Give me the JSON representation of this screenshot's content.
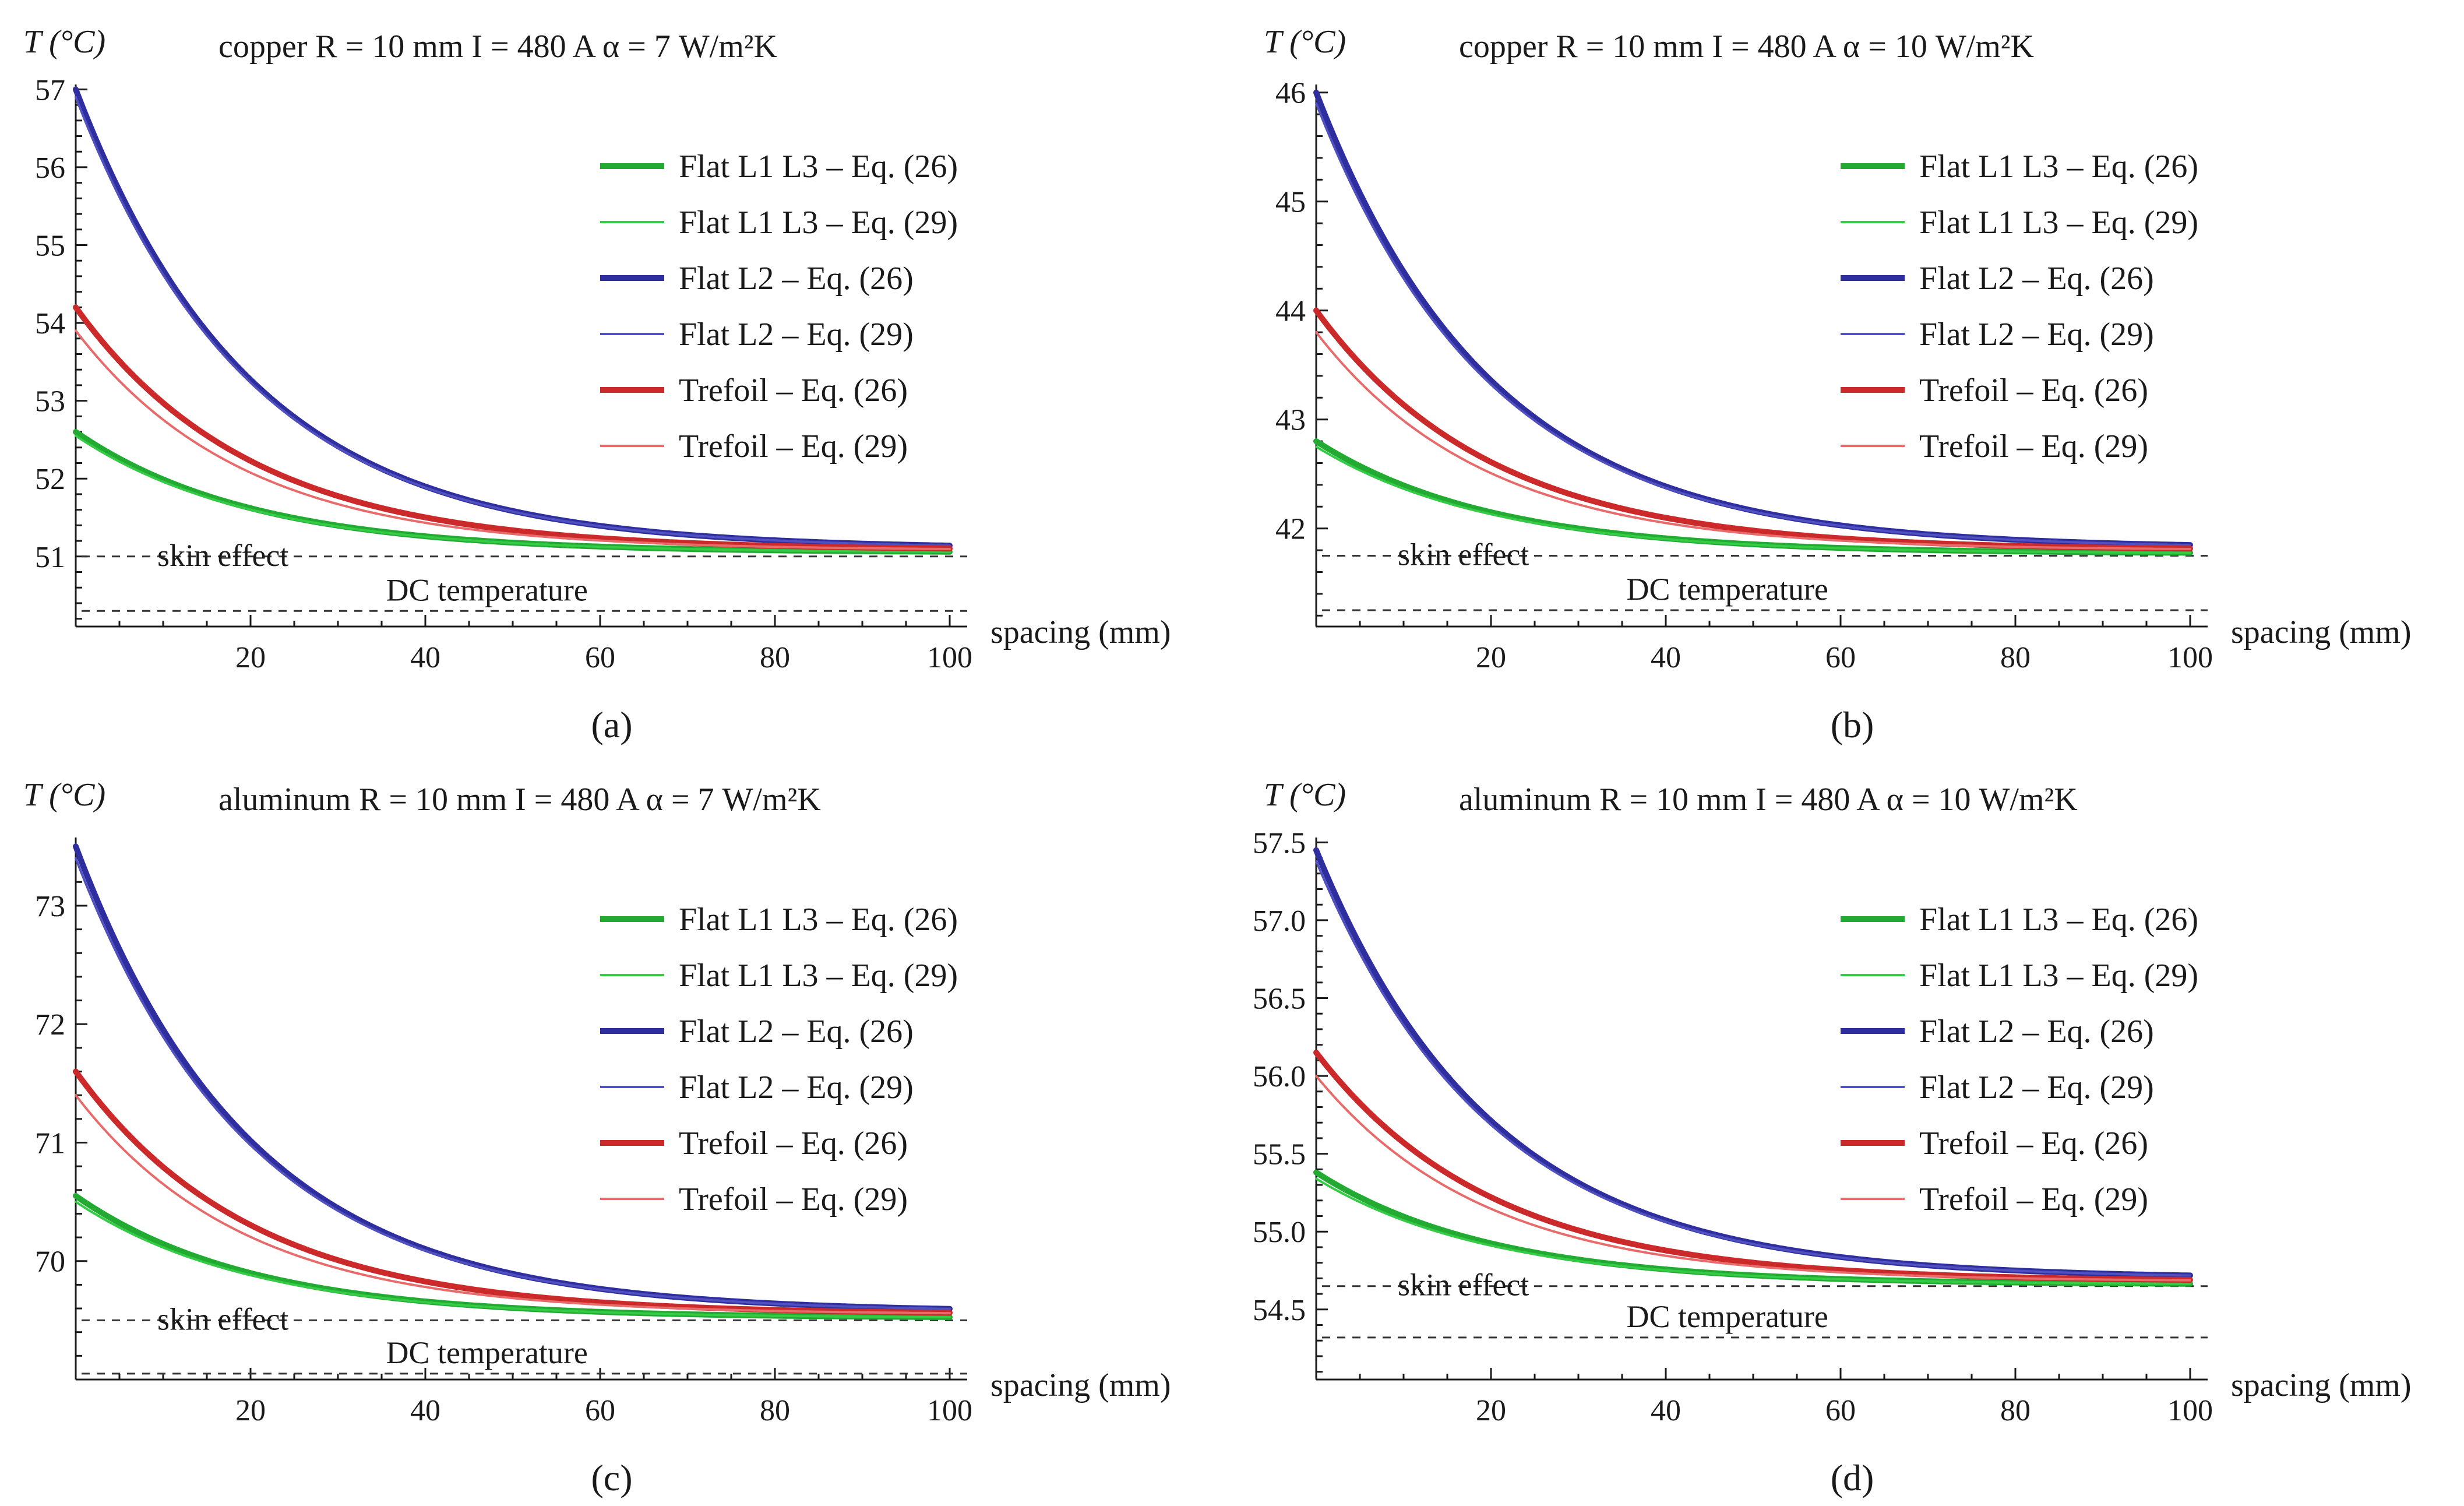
{
  "chart_data": [
    {
      "type": "line",
      "panel_label": "(a)",
      "title": "copper   R = 10 mm   I = 480 A   α = 7 W/m²K",
      "ylabel": "T (°C)",
      "xlabel": "spacing (mm)",
      "xlim": [
        0,
        102
      ],
      "ylim": [
        50.1,
        57.1
      ],
      "xticks": [
        20,
        40,
        60,
        80,
        100
      ],
      "yticks": [
        51,
        52,
        53,
        54,
        55,
        56,
        57
      ],
      "skin_effect": {
        "label": "skin effect",
        "value": 51.0
      },
      "dc_temperature": {
        "label": "DC temperature",
        "value": 50.3
      },
      "legend": "top-right",
      "series": [
        {
          "name": "Flat L1 L3 – Eq. (26)",
          "color": "#22aa33",
          "weight": "thick",
          "start": 52.6,
          "end": 51.05,
          "decay": 0.05
        },
        {
          "name": "Flat L1 L3 – Eq. (29)",
          "color": "#33cc44",
          "weight": "thin",
          "start": 52.55,
          "end": 51.05,
          "decay": 0.05
        },
        {
          "name": "Flat L2 – Eq. (26)",
          "color": "#2e2e9e",
          "weight": "thick",
          "start": 57.0,
          "end": 51.1,
          "decay": 0.05
        },
        {
          "name": "Flat L2 – Eq. (29)",
          "color": "#5050c0",
          "weight": "thin",
          "start": 56.9,
          "end": 51.1,
          "decay": 0.05
        },
        {
          "name": "Trefoil – Eq. (26)",
          "color": "#cc2a2a",
          "weight": "thick",
          "start": 54.2,
          "end": 51.08,
          "decay": 0.05
        },
        {
          "name": "Trefoil – Eq. (29)",
          "color": "#e86a6a",
          "weight": "thin",
          "start": 53.9,
          "end": 51.08,
          "decay": 0.052
        }
      ]
    },
    {
      "type": "line",
      "panel_label": "(b)",
      "title": "copper   R = 10 mm   I = 480 A   α = 10 W/m²K",
      "ylabel": "T (°C)",
      "xlabel": "spacing (mm)",
      "xlim": [
        0,
        102
      ],
      "ylim": [
        41.1,
        46.1
      ],
      "xticks": [
        20,
        40,
        60,
        80,
        100
      ],
      "yticks": [
        42,
        43,
        44,
        45,
        46
      ],
      "skin_effect": {
        "label": "skin effect",
        "value": 41.75
      },
      "dc_temperature": {
        "label": "DC temperature",
        "value": 41.25
      },
      "legend": "top-right",
      "series": [
        {
          "name": "Flat L1 L3 – Eq. (26)",
          "color": "#22aa33",
          "weight": "thick",
          "start": 42.8,
          "end": 41.77,
          "decay": 0.05
        },
        {
          "name": "Flat L1 L3 – Eq. (29)",
          "color": "#33cc44",
          "weight": "thin",
          "start": 42.75,
          "end": 41.77,
          "decay": 0.05
        },
        {
          "name": "Flat L2 – Eq. (26)",
          "color": "#2e2e9e",
          "weight": "thick",
          "start": 46.0,
          "end": 41.82,
          "decay": 0.05
        },
        {
          "name": "Flat L2 – Eq. (29)",
          "color": "#5050c0",
          "weight": "thin",
          "start": 45.9,
          "end": 41.82,
          "decay": 0.05
        },
        {
          "name": "Trefoil – Eq. (26)",
          "color": "#cc2a2a",
          "weight": "thick",
          "start": 44.0,
          "end": 41.8,
          "decay": 0.05
        },
        {
          "name": "Trefoil – Eq. (29)",
          "color": "#e86a6a",
          "weight": "thin",
          "start": 43.8,
          "end": 41.8,
          "decay": 0.052
        }
      ]
    },
    {
      "type": "line",
      "panel_label": "(c)",
      "title": "aluminum   R = 10 mm   I = 480 A   α = 7 W/m²K",
      "ylabel": "T (°C)",
      "xlabel": "spacing (mm)",
      "xlim": [
        0,
        102
      ],
      "ylim": [
        69.0,
        73.6
      ],
      "xticks": [
        20,
        40,
        60,
        80,
        100
      ],
      "yticks": [
        70,
        71,
        72,
        73
      ],
      "skin_effect": {
        "label": "skin effect",
        "value": 69.5
      },
      "dc_temperature": {
        "label": "DC temperature",
        "value": 69.05
      },
      "legend": "top-right",
      "series": [
        {
          "name": "Flat L1 L3 – Eq. (26)",
          "color": "#22aa33",
          "weight": "thick",
          "start": 70.55,
          "end": 69.52,
          "decay": 0.05
        },
        {
          "name": "Flat L1 L3 – Eq. (29)",
          "color": "#33cc44",
          "weight": "thin",
          "start": 70.5,
          "end": 69.52,
          "decay": 0.05
        },
        {
          "name": "Flat L2 – Eq. (26)",
          "color": "#2e2e9e",
          "weight": "thick",
          "start": 73.5,
          "end": 69.57,
          "decay": 0.05
        },
        {
          "name": "Flat L2 – Eq. (29)",
          "color": "#5050c0",
          "weight": "thin",
          "start": 73.4,
          "end": 69.57,
          "decay": 0.05
        },
        {
          "name": "Trefoil – Eq. (26)",
          "color": "#cc2a2a",
          "weight": "thick",
          "start": 71.6,
          "end": 69.55,
          "decay": 0.05
        },
        {
          "name": "Trefoil – Eq. (29)",
          "color": "#e86a6a",
          "weight": "thin",
          "start": 71.4,
          "end": 69.55,
          "decay": 0.052
        }
      ]
    },
    {
      "type": "line",
      "panel_label": "(d)",
      "title": "aluminum   R = 10 mm   I = 480 A   α = 10 W/m²K",
      "ylabel": "T (°C)",
      "xlabel": "spacing (mm)",
      "xlim": [
        0,
        102
      ],
      "ylim": [
        54.05,
        57.55
      ],
      "xticks": [
        20,
        40,
        60,
        80,
        100
      ],
      "yticks": [
        "54.5",
        "55.0",
        "55.5",
        "56.0",
        "56.5",
        "57.0",
        "57.5"
      ],
      "skin_effect": {
        "label": "skin effect",
        "value": 54.65
      },
      "dc_temperature": {
        "label": "DC temperature",
        "value": 54.32
      },
      "legend": "top-right",
      "series": [
        {
          "name": "Flat L1 L3 – Eq. (26)",
          "color": "#22aa33",
          "weight": "thick",
          "start": 55.38,
          "end": 54.66,
          "decay": 0.05
        },
        {
          "name": "Flat L1 L3 – Eq. (29)",
          "color": "#33cc44",
          "weight": "thin",
          "start": 55.34,
          "end": 54.66,
          "decay": 0.05
        },
        {
          "name": "Flat L2 – Eq. (26)",
          "color": "#2e2e9e",
          "weight": "thick",
          "start": 57.45,
          "end": 54.7,
          "decay": 0.05
        },
        {
          "name": "Flat L2 – Eq. (29)",
          "color": "#5050c0",
          "weight": "thin",
          "start": 57.38,
          "end": 54.7,
          "decay": 0.05
        },
        {
          "name": "Trefoil – Eq. (26)",
          "color": "#cc2a2a",
          "weight": "thick",
          "start": 56.15,
          "end": 54.68,
          "decay": 0.05
        },
        {
          "name": "Trefoil – Eq. (29)",
          "color": "#e86a6a",
          "weight": "thin",
          "start": 56.0,
          "end": 54.68,
          "decay": 0.052
        }
      ]
    }
  ]
}
